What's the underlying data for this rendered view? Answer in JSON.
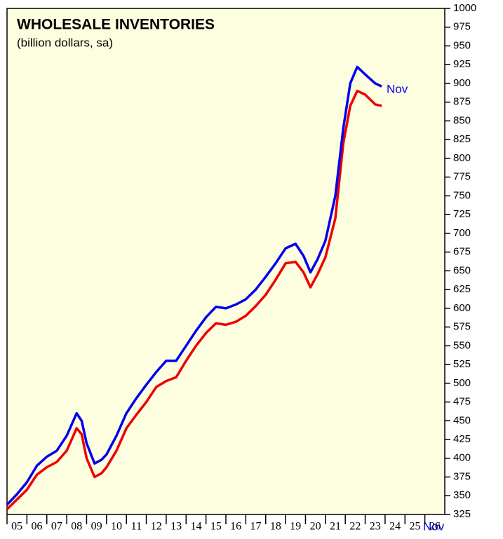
{
  "chart_data": {
    "type": "line",
    "title": "WHOLESALE INVENTORIES",
    "subtitle": "(billion dollars, sa)",
    "annotations": [
      "Nov",
      "Nov"
    ],
    "x": [
      2005.0,
      2005.5,
      2006.0,
      2006.5,
      2007.0,
      2007.5,
      2008.0,
      2008.5,
      2008.75,
      2009.0,
      2009.4,
      2009.75,
      2010.0,
      2010.5,
      2011.0,
      2011.5,
      2012.0,
      2012.5,
      2013.0,
      2013.5,
      2014.0,
      2014.5,
      2015.0,
      2015.5,
      2016.0,
      2016.5,
      2017.0,
      2017.5,
      2018.0,
      2018.5,
      2019.0,
      2019.5,
      2019.9,
      2020.25,
      2020.6,
      2021.0,
      2021.5,
      2021.9,
      2022.25,
      2022.6,
      2023.0,
      2023.5,
      2023.83
    ],
    "series": [
      {
        "color": "#0000ee",
        "values": [
          338,
          352,
          368,
          390,
          402,
          410,
          430,
          460,
          450,
          420,
          393,
          398,
          405,
          430,
          460,
          480,
          498,
          515,
          530,
          530,
          550,
          570,
          588,
          602,
          600,
          605,
          612,
          625,
          642,
          660,
          680,
          686,
          670,
          648,
          665,
          690,
          750,
          840,
          900,
          922,
          912,
          900,
          896
        ]
      },
      {
        "color": "#ee0000",
        "values": [
          332,
          345,
          358,
          378,
          388,
          395,
          410,
          440,
          432,
          400,
          375,
          380,
          388,
          410,
          440,
          458,
          475,
          495,
          503,
          508,
          530,
          550,
          567,
          580,
          578,
          582,
          590,
          603,
          618,
          638,
          660,
          662,
          648,
          628,
          645,
          668,
          720,
          820,
          870,
          890,
          885,
          872,
          870
        ]
      }
    ],
    "xlim": [
      2005,
      2027
    ],
    "xticks": [
      {
        "value": 2005.5,
        "label": "05"
      },
      {
        "value": 2006.5,
        "label": "06"
      },
      {
        "value": 2007.5,
        "label": "07"
      },
      {
        "value": 2008.5,
        "label": "08"
      },
      {
        "value": 2009.5,
        "label": "09"
      },
      {
        "value": 2010.5,
        "label": "10"
      },
      {
        "value": 2011.5,
        "label": "11"
      },
      {
        "value": 2012.5,
        "label": "12"
      },
      {
        "value": 2013.5,
        "label": "13"
      },
      {
        "value": 2014.5,
        "label": "14"
      },
      {
        "value": 2015.5,
        "label": "15"
      },
      {
        "value": 2016.5,
        "label": "16"
      },
      {
        "value": 2017.5,
        "label": "17"
      },
      {
        "value": 2018.5,
        "label": "18"
      },
      {
        "value": 2019.5,
        "label": "19"
      },
      {
        "value": 2020.5,
        "label": "20"
      },
      {
        "value": 2021.5,
        "label": "21"
      },
      {
        "value": 2022.5,
        "label": "22"
      },
      {
        "value": 2023.5,
        "label": "23"
      },
      {
        "value": 2024.5,
        "label": "24"
      },
      {
        "value": 2025.5,
        "label": "25"
      },
      {
        "value": 2026.5,
        "label": "26"
      }
    ],
    "ylim": [
      325,
      1000
    ],
    "yticks": [
      325,
      350,
      375,
      400,
      425,
      450,
      475,
      500,
      525,
      550,
      575,
      600,
      625,
      650,
      675,
      700,
      725,
      750,
      775,
      800,
      825,
      850,
      875,
      900,
      925,
      950,
      975,
      1000
    ]
  }
}
